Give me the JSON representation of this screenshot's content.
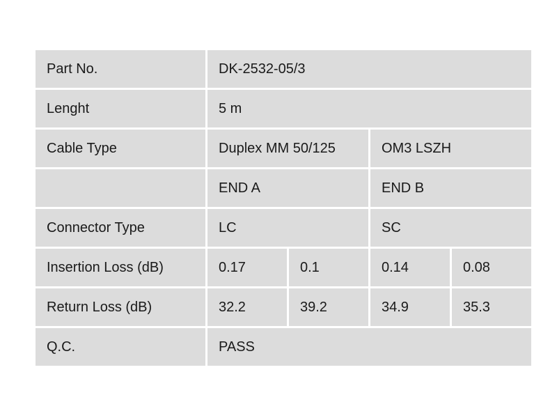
{
  "table": {
    "part_no": {
      "label": "Part No.",
      "value": "DK-2532-05/3"
    },
    "length": {
      "label": "Lenght",
      "value": "5 m"
    },
    "cable_type": {
      "label": "Cable Type",
      "value_a": "Duplex MM 50/125",
      "value_b": "OM3 LSZH"
    },
    "ends": {
      "label": "",
      "end_a": "END A",
      "end_b": "END B"
    },
    "connector_type": {
      "label": "Connector Type",
      "end_a": "LC",
      "end_b": "SC"
    },
    "insertion_loss": {
      "label": "Insertion Loss (dB)",
      "values": [
        "0.17",
        "0.1",
        "0.14",
        "0.08"
      ]
    },
    "return_loss": {
      "label": "Return Loss (dB)",
      "values": [
        "32.2",
        "39.2",
        "34.9",
        "35.3"
      ]
    },
    "qc": {
      "label": "Q.C.",
      "value": "PASS"
    }
  },
  "colors": {
    "cell_background": "#dcdcdc",
    "grid_lines": "#ffffff",
    "text": "#1a1a1a"
  }
}
